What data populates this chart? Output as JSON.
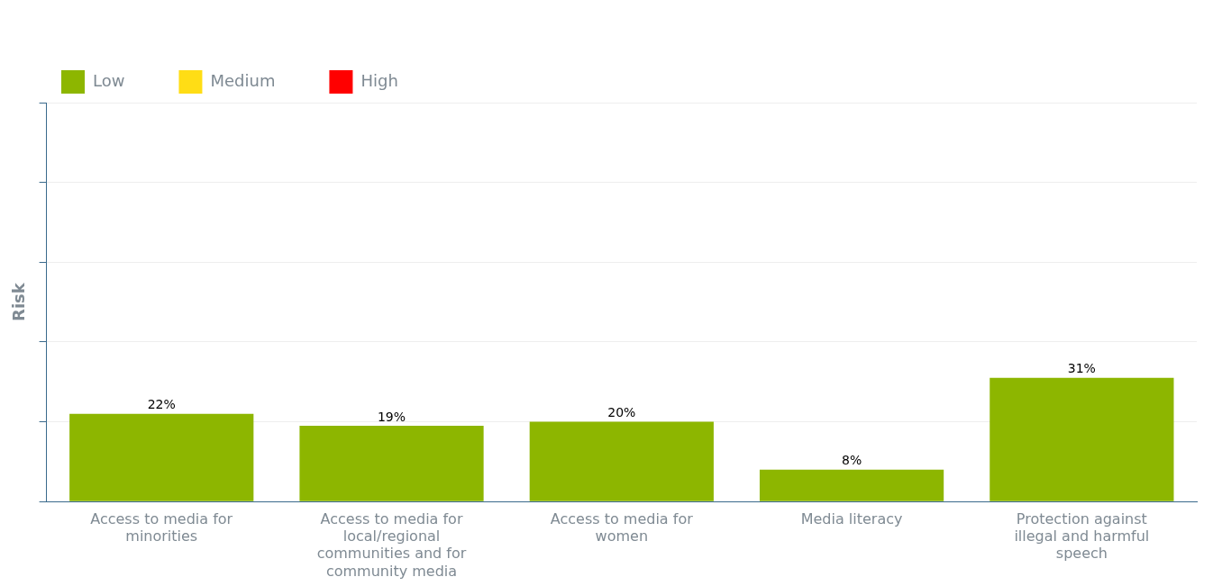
{
  "chart_data": {
    "type": "bar",
    "ylabel": "Risk",
    "categories": [
      "Access to media for minorities",
      "Access to media for local/regional communities and for community media",
      "Access to media for women",
      "Media literacy",
      "Protection against illegal and harmful speech"
    ],
    "series": [
      {
        "name": "Low",
        "color": "#8db600",
        "values": [
          22,
          19,
          20,
          8,
          31
        ],
        "value_labels": [
          "22%",
          "19%",
          "20%",
          "8%",
          "31%"
        ]
      },
      {
        "name": "Medium",
        "color": "#ffdd15",
        "values": [
          null,
          null,
          null,
          null,
          null
        ]
      },
      {
        "name": "High",
        "color": "#ff0000",
        "values": [
          null,
          null,
          null,
          null,
          null
        ]
      }
    ],
    "stacked": true,
    "ylim": [
      0,
      100
    ],
    "yticks": [
      {
        "value": 0,
        "label": null
      },
      {
        "value": 20,
        "label": null
      },
      {
        "value": 40,
        "label": null
      },
      {
        "value": 60,
        "label": null
      },
      {
        "value": 80,
        "label": null
      },
      {
        "value": 100,
        "label": null
      }
    ],
    "tick_labels": "x",
    "grid": "y",
    "legend": "top left"
  }
}
